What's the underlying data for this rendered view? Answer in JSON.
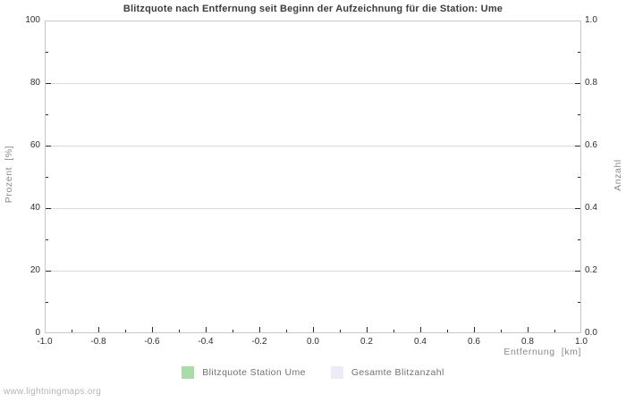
{
  "watermark": "www.lightningmaps.org",
  "chart_data": {
    "type": "line",
    "title": "Blitzquote nach Entfernung seit Beginn der Aufzeichnung für die Station: Ume",
    "grid": "horizontal-major-only",
    "legend_position": "bottom-center",
    "plot_empty": true,
    "x_axis": {
      "label": "Entfernung  [km]",
      "min": -1.0,
      "max": 1.0,
      "major_ticks": [
        -1.0,
        -0.8,
        -0.6,
        -0.4,
        -0.2,
        0.0,
        0.2,
        0.4,
        0.6,
        0.8,
        1.0
      ],
      "tick_labels": [
        "-1.0",
        "-0.8",
        "-0.6",
        "-0.4",
        "-0.2",
        "0.0",
        "0.2",
        "0.4",
        "0.6",
        "0.8",
        "1.0"
      ],
      "minor_step": 0.1
    },
    "y_axis_left": {
      "label": "Prozent  [%]",
      "min": 0,
      "max": 100,
      "major_ticks": [
        0,
        20,
        40,
        60,
        80,
        100
      ],
      "tick_labels": [
        "0",
        "20",
        "40",
        "60",
        "80",
        "100"
      ],
      "minor_step": 10
    },
    "y_axis_right": {
      "label": "Anzahl",
      "min": 0.0,
      "max": 1.0,
      "major_ticks": [
        0.0,
        0.2,
        0.4,
        0.6,
        0.8,
        1.0
      ],
      "tick_labels": [
        "0.0",
        "0.2",
        "0.4",
        "0.6",
        "0.8",
        "1.0"
      ],
      "minor_step": 0.1
    },
    "legend": [
      {
        "label": "Blitzquote Station Ume",
        "color": "#aadcaa"
      },
      {
        "label": "Gesamte Blitzanzahl",
        "color": "#ececf8"
      }
    ],
    "series": [
      {
        "name": "Blitzquote Station Ume",
        "axis": "left",
        "points": []
      },
      {
        "name": "Gesamte Blitzanzahl",
        "axis": "right",
        "points": []
      }
    ]
  },
  "colors": {
    "title": "#3c3c3c",
    "tick_label": "#2e2e2e",
    "axis_title": "#8a8a8a",
    "legend_text": "#707070",
    "gridline": "#d9d9d9",
    "plot_border": "#c8c8c8",
    "tick_mark": "#2a2a2a",
    "watermark": "#b4b4b4",
    "background": "#ffffff"
  }
}
